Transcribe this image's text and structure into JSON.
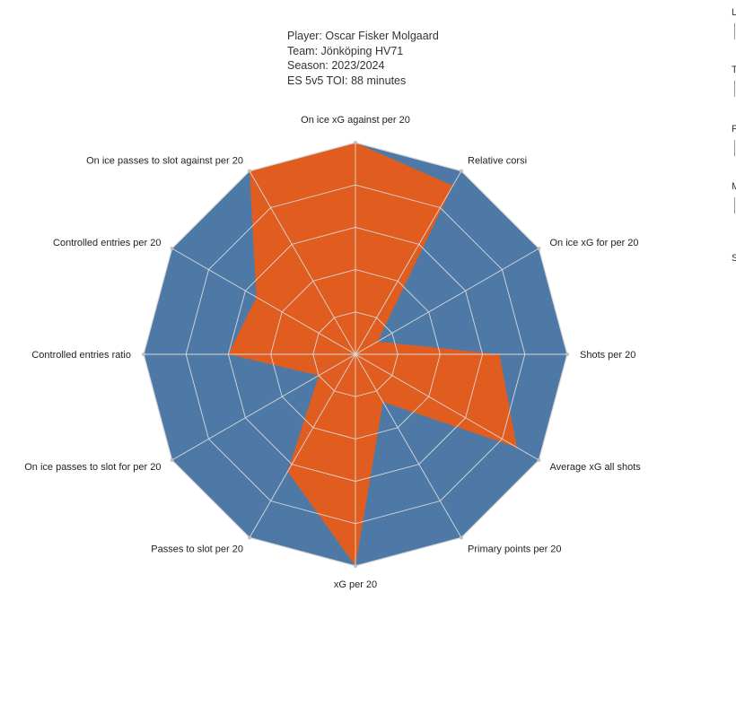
{
  "header": {
    "player": "Player: Oscar Fisker Molgaard",
    "team": "Team: Jönköping HV71",
    "season": "Season: 2023/2024",
    "toi": "ES 5v5 TOI: 88 minutes"
  },
  "colors": {
    "background_polygon": "#4e79a7",
    "player_polygon": "#e15c1f",
    "grid": "#d9d9d9"
  },
  "side_panel": {
    "letters": [
      "L",
      "T",
      "P",
      "M",
      "S"
    ]
  },
  "chart_data": {
    "type": "radar",
    "rlim": [
      0,
      5
    ],
    "rings": 5,
    "axes": [
      "On ice xG against per 20",
      "Relative corsi",
      "On ice xG for per 20",
      "Shots per 20",
      "Average xG all shots",
      "Primary points per 20",
      "xG per 20",
      "Passes to slot per 20",
      "On ice passes to slot for per 20",
      "Controlled entries ratio",
      "Controlled entries per 20",
      "On ice passes to slot against per 20"
    ],
    "series": [
      {
        "values": [
          5,
          5,
          5,
          5,
          5,
          5,
          5,
          5,
          5,
          5,
          5,
          5
        ]
      },
      {
        "values": [
          5,
          4.6,
          0.6,
          3.4,
          4.4,
          1.3,
          5,
          3.2,
          1.0,
          3.0,
          2.7,
          5
        ]
      }
    ]
  }
}
